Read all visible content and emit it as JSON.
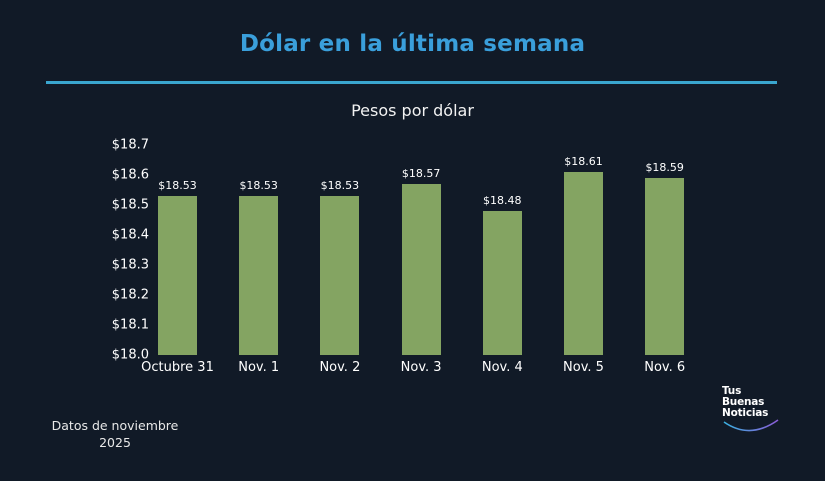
{
  "header": {
    "title": "Dólar en la última semana",
    "subtitle": "Pesos por dólar"
  },
  "footer": {
    "note_line1": "Datos de noviembre",
    "note_line2": "2025",
    "logo_line1": "Tus",
    "logo_line2": "Buenas",
    "logo_line3": "Noticias"
  },
  "colors": {
    "background": "#111a27",
    "title": "#3a9fdb",
    "rule": "#3aa6cf",
    "bar": "#84a462",
    "text": "#ffffff"
  },
  "chart_data": {
    "type": "bar",
    "title": "Dólar en la última semana",
    "subtitle": "Pesos por dólar",
    "xlabel": "",
    "ylabel": "",
    "categories": [
      "Octubre 31",
      "Nov. 1",
      "Nov. 2",
      "Nov. 3",
      "Nov. 4",
      "Nov. 5",
      "Nov. 6"
    ],
    "values": [
      18.53,
      18.53,
      18.53,
      18.57,
      18.48,
      18.61,
      18.59
    ],
    "value_labels": [
      "$18.53",
      "$18.53",
      "$18.53",
      "$18.57",
      "$18.48",
      "$18.61",
      "$18.59"
    ],
    "ylim": [
      18.0,
      18.7
    ],
    "yticks": [
      18.0,
      18.1,
      18.2,
      18.3,
      18.4,
      18.5,
      18.6,
      18.7
    ],
    "ytick_labels": [
      "$18.0",
      "$18.1",
      "$18.2",
      "$18.3",
      "$18.4",
      "$18.5",
      "$18.6",
      "$18.7"
    ],
    "grid": false,
    "legend": null,
    "annotation": "Datos de noviembre 2025"
  }
}
